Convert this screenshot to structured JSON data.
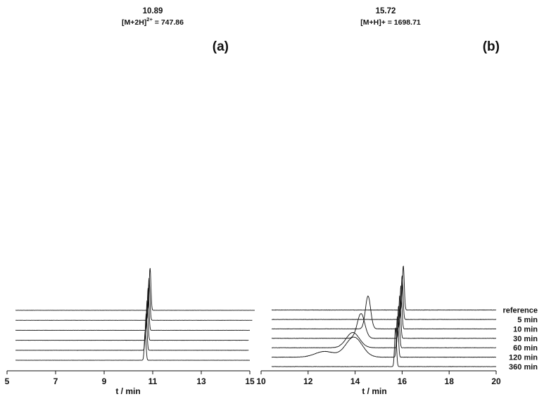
{
  "chart_data": [
    {
      "type": "line",
      "panel": "(a)",
      "xlabel": "t / min",
      "ylabel": "",
      "xlim": [
        5,
        15
      ],
      "x_ticks": [
        "5",
        "7",
        "9",
        "11",
        "13",
        "15"
      ],
      "annotation": {
        "retention_time": "10.89",
        "ion_label": "[M+2H]",
        "ion_charge": "2+",
        "ion_value": " = 747.86"
      },
      "grid": false,
      "legend": "none",
      "series": [
        {
          "label": "",
          "baseline_offset": 5,
          "x_end": 15.2,
          "peak_rt": 10.89,
          "peak_height": 8.9,
          "peak_width": 0.035,
          "minor_peaks": []
        },
        {
          "label": "",
          "baseline_offset": 4,
          "x_end": 15.1,
          "peak_rt": 10.85,
          "peak_height": 8.9,
          "peak_width": 0.035,
          "minor_peaks": []
        },
        {
          "label": "",
          "baseline_offset": 3,
          "x_end": 15.0,
          "peak_rt": 10.81,
          "peak_height": 8.9,
          "peak_width": 0.035,
          "minor_peaks": []
        },
        {
          "label": "",
          "baseline_offset": 2,
          "x_end": 14.95,
          "peak_rt": 10.77,
          "peak_height": 8.4,
          "peak_width": 0.035,
          "minor_peaks": []
        },
        {
          "label": "",
          "baseline_offset": 1,
          "x_end": 14.95,
          "peak_rt": 10.73,
          "peak_height": 7.6,
          "peak_width": 0.035,
          "minor_peaks": []
        },
        {
          "label": "",
          "baseline_offset": 0,
          "x_end": 15.0,
          "peak_rt": 10.69,
          "peak_height": 6.0,
          "peak_width": 0.035,
          "minor_peaks": []
        }
      ]
    },
    {
      "type": "line",
      "panel": "(b)",
      "xlabel": "t / min",
      "ylabel": "",
      "xlim": [
        10,
        20
      ],
      "x_ticks": [
        "10",
        "12",
        "14",
        "16",
        "18",
        "20"
      ],
      "annotation": {
        "retention_time": "15.72",
        "ion_label": "[M+H]+ = 1698.71"
      },
      "grid": false,
      "legend": "right",
      "series": [
        {
          "label": "reference",
          "baseline_offset": 6,
          "peak_rt": 16.05,
          "peak_height": 9.3,
          "peak_width": 0.04,
          "minor_peaks": []
        },
        {
          "label": "5 min",
          "baseline_offset": 5,
          "peak_rt": 16.0,
          "peak_height": 9.2,
          "peak_width": 0.04,
          "minor_peaks": []
        },
        {
          "label": "10 min",
          "baseline_offset": 4,
          "peak_rt": 15.95,
          "peak_height": 9.1,
          "peak_width": 0.04,
          "minor_peaks": [
            {
              "rt": 14.55,
              "height": 6.9,
              "width": 0.11
            }
          ]
        },
        {
          "label": "30 min",
          "baseline_offset": 3,
          "peak_rt": 15.9,
          "peak_height": 9.0,
          "peak_width": 0.04,
          "minor_peaks": [
            {
              "rt": 14.25,
              "height": 5.2,
              "width": 0.16
            }
          ]
        },
        {
          "label": "60 min",
          "baseline_offset": 2,
          "peak_rt": 15.85,
          "peak_height": 8.8,
          "peak_width": 0.04,
          "minor_peaks": [
            {
              "rt": 13.9,
              "height": 3.2,
              "width": 0.28
            }
          ]
        },
        {
          "label": "120 min",
          "baseline_offset": 1,
          "peak_rt": 15.8,
          "peak_height": 8.6,
          "peak_width": 0.04,
          "minor_peaks": [
            {
              "rt": 13.95,
              "height": 4.2,
              "width": 0.35
            },
            {
              "rt": 12.7,
              "height": 1.2,
              "width": 0.4
            }
          ]
        },
        {
          "label": "360 min",
          "baseline_offset": 0,
          "peak_rt": 15.72,
          "peak_height": 8.2,
          "peak_width": 0.04,
          "minor_peaks": []
        }
      ]
    }
  ]
}
